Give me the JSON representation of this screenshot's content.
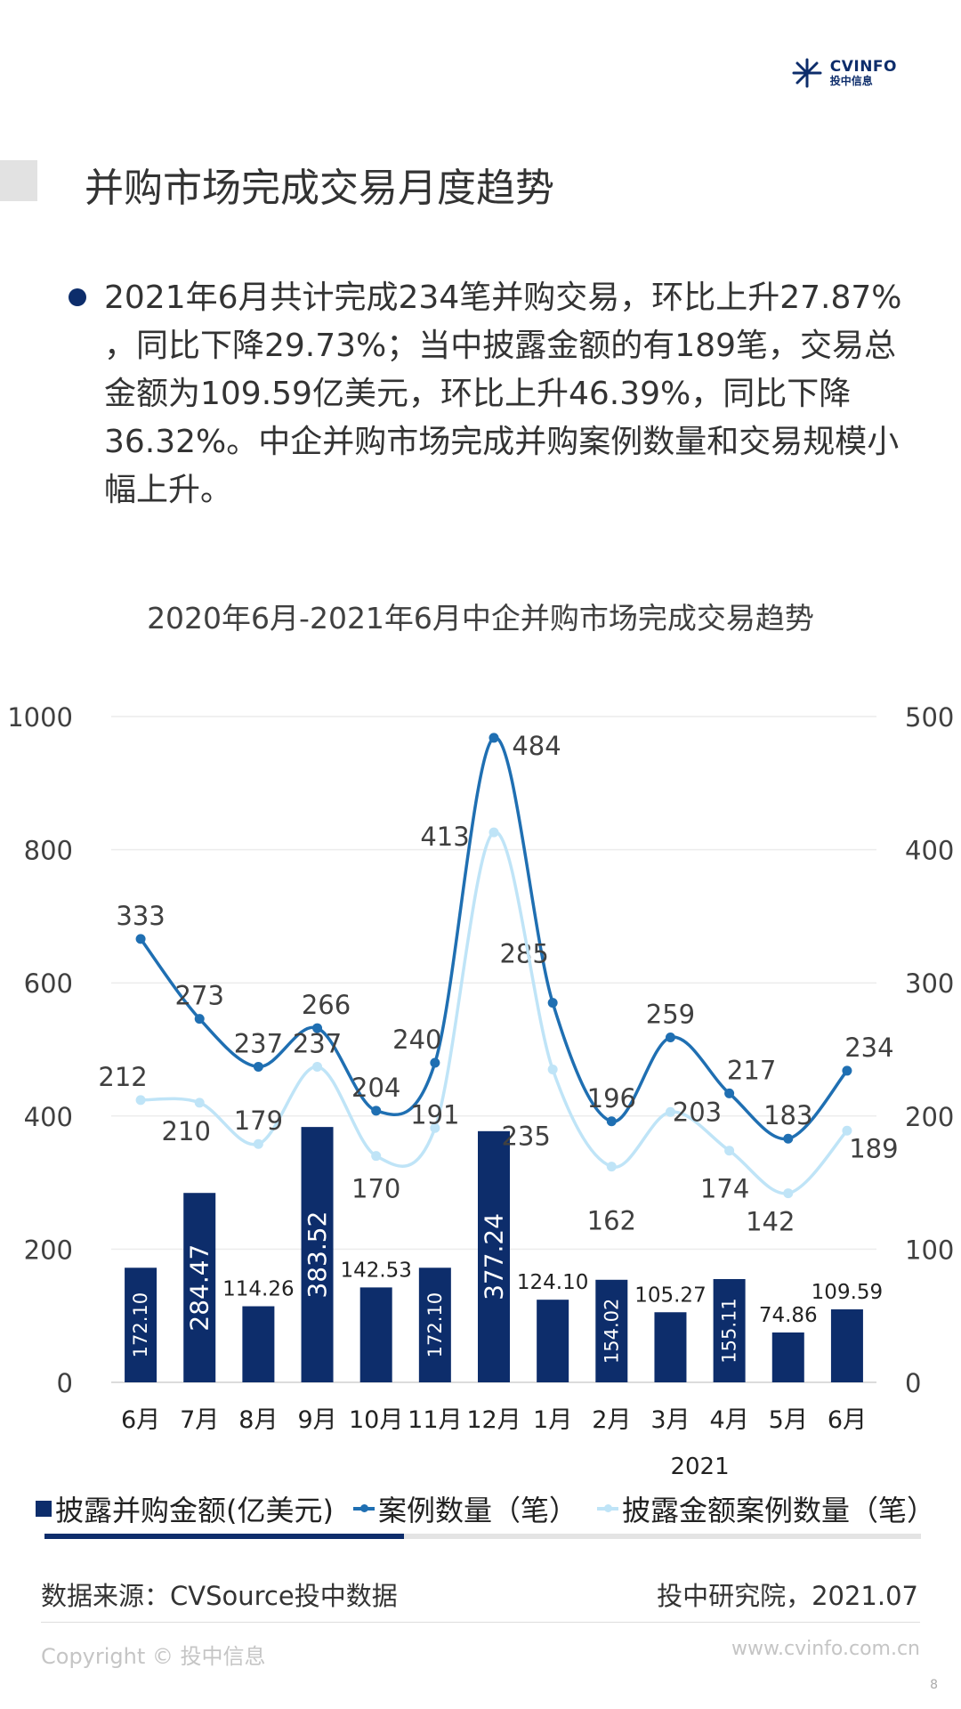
{
  "header": {
    "logo_name": "CVINFO",
    "logo_sub": "投中信息",
    "title": "并购市场完成交易月度趋势"
  },
  "summary": "2021年6月共计完成234笔并购交易，环比上升27.87% ，同比下降29.73%；当中披露金额的有189笔，交易总金额为109.59亿美元，环比上升46.39%，同比下降36.32%。中企并购市场完成并购案例数量和交易规模小幅上升。",
  "chart_data": {
    "type": "bar",
    "title": "2020年6月-2021年6月中企并购市场完成交易趋势",
    "categories": [
      "6月",
      "7月",
      "8月",
      "9月",
      "10月",
      "11月",
      "12月",
      "1月",
      "2月",
      "3月",
      "4月",
      "5月",
      "6月"
    ],
    "year_label": "2021",
    "year_start_index": 7,
    "y_left": {
      "range": [
        0,
        1000
      ],
      "ticks": [
        "0",
        "200",
        "400",
        "600",
        "800",
        "1000"
      ]
    },
    "y_right": {
      "range": [
        0,
        500
      ],
      "ticks": [
        "0",
        "100",
        "200",
        "300",
        "400",
        "500"
      ]
    },
    "series": [
      {
        "name": "披露并购金额(亿美元)",
        "type": "bar",
        "axis": "left",
        "color": "#0d2d6b",
        "labels": [
          "172.10",
          "284.47",
          "114.26",
          "383.52",
          "142.53",
          "172.10",
          "377.24",
          "124.10",
          "154.02",
          "105.27",
          "155.11",
          "74.86",
          "109.59"
        ],
        "values": [
          172.1,
          284.47,
          114.26,
          383.52,
          142.53,
          172.1,
          377.24,
          124.1,
          154.02,
          105.27,
          155.11,
          74.86,
          109.59
        ]
      },
      {
        "name": "案例数量（笔）",
        "type": "line",
        "axis": "right",
        "color": "#1f6fb2",
        "values": [
          333,
          273,
          237,
          266,
          204,
          240,
          484,
          285,
          196,
          259,
          217,
          183,
          234
        ]
      },
      {
        "name": "披露金额案例数量（笔）",
        "type": "line",
        "axis": "right",
        "color": "#bfe4f7",
        "values": [
          212,
          210,
          179,
          237,
          170,
          191,
          413,
          235,
          162,
          203,
          174,
          142,
          189
        ]
      }
    ],
    "grid": true,
    "legend_position": "bottom"
  },
  "legend_progress": 0.41,
  "footer": {
    "source": "数据来源：CVSource投中数据",
    "institute": "投中研究院，2021.07",
    "copyright": "Copyright © 投中信息",
    "website": "www.cvinfo.com.cn",
    "page": "8"
  }
}
